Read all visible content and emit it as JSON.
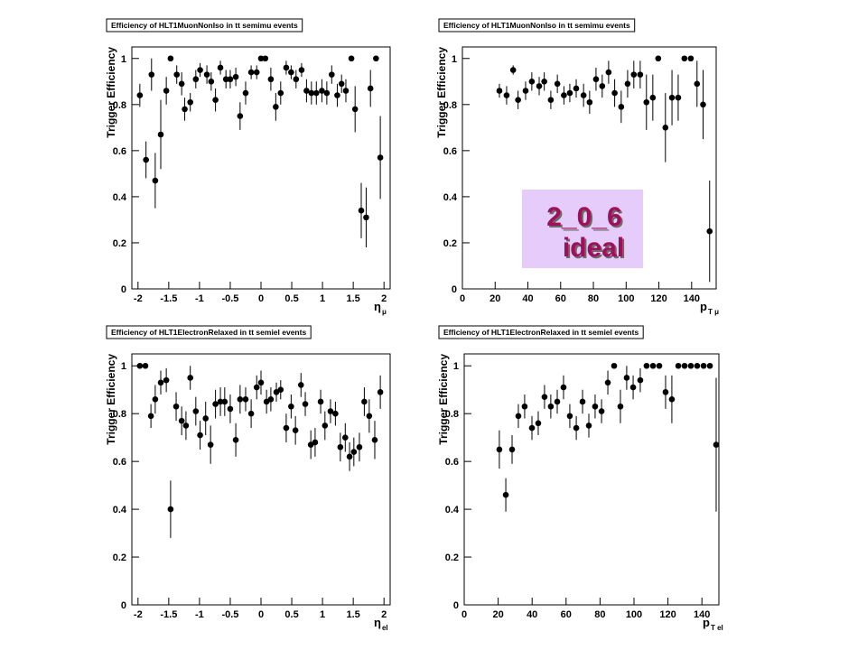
{
  "chart_data": [
    {
      "type": "scatter",
      "title": "Efficiency of HLT1MuonNonIso in tt semimu events",
      "ylabel": "Trigger Efficiency",
      "xlabel": {
        "symbol": "η",
        "subscript": "μ"
      },
      "color": "#000000",
      "xlim": [
        -2.1,
        2.1
      ],
      "ylim": [
        0,
        1.05
      ],
      "xticks": [
        -2,
        -1.5,
        -1,
        -0.5,
        0,
        0.5,
        1,
        1.5,
        2
      ],
      "yticks": [
        0,
        0.2,
        0.4,
        0.6,
        0.8,
        1
      ],
      "x": [
        -1.97,
        -1.87,
        -1.78,
        -1.72,
        -1.63,
        -1.54,
        -1.47,
        -1.37,
        -1.29,
        -1.24,
        -1.15,
        -1.06,
        -0.99,
        -0.88,
        -0.81,
        -0.74,
        -0.66,
        -0.57,
        -0.5,
        -0.41,
        -0.34,
        -0.25,
        -0.16,
        -0.07,
        0,
        0.07,
        0.16,
        0.24,
        0.32,
        0.41,
        0.49,
        0.57,
        0.66,
        0.74,
        0.82,
        0.9,
        0.99,
        1.07,
        1.15,
        1.24,
        1.31,
        1.38,
        1.47,
        1.53,
        1.63,
        1.71,
        1.78,
        1.87,
        1.94
      ],
      "values": [
        0.84,
        0.56,
        0.93,
        0.47,
        0.67,
        0.86,
        1,
        0.93,
        0.89,
        0.78,
        0.81,
        0.91,
        0.95,
        0.93,
        0.9,
        0.82,
        0.96,
        0.91,
        0.91,
        0.92,
        0.75,
        0.85,
        0.94,
        0.94,
        1,
        1,
        0.91,
        0.79,
        0.85,
        0.96,
        0.94,
        0.91,
        0.95,
        0.86,
        0.85,
        0.85,
        0.86,
        0.85,
        0.93,
        0.84,
        0.89,
        0.86,
        1,
        0.78,
        0.34,
        0.31,
        0.87,
        1,
        0.57
      ],
      "errors": [
        0.05,
        0.08,
        0.07,
        0.12,
        0.15,
        0.06,
        0,
        0.04,
        0.05,
        0.05,
        0.04,
        0.04,
        0.03,
        0.04,
        0.04,
        0.05,
        0.03,
        0.04,
        0.04,
        0.04,
        0.06,
        0.05,
        0.03,
        0.03,
        0,
        0,
        0.05,
        0.06,
        0.05,
        0.03,
        0.03,
        0.04,
        0.03,
        0.05,
        0.05,
        0.05,
        0.05,
        0.05,
        0.04,
        0.05,
        0.04,
        0.05,
        0,
        0.1,
        0.12,
        0.13,
        0.08,
        0,
        0.18
      ]
    },
    {
      "type": "scatter",
      "title": "Efficiency of HLT1MuonNonIso in tt semimu events",
      "ylabel": "Trigger Efficiency",
      "xlabel": {
        "symbol": "p",
        "subscript": "T μ"
      },
      "color": "#000000",
      "xlim": [
        0,
        155
      ],
      "ylim": [
        0,
        1.05
      ],
      "xticks": [
        0,
        20,
        40,
        60,
        80,
        100,
        120,
        140
      ],
      "yticks": [
        0,
        0.2,
        0.4,
        0.6,
        0.8,
        1
      ],
      "x": [
        22.6,
        27,
        31,
        34,
        38.6,
        42.4,
        46.9,
        50,
        54,
        58,
        62,
        65.6,
        69.5,
        74,
        77.7,
        81.6,
        85.4,
        89.3,
        93,
        97,
        100.9,
        104.7,
        108.6,
        112.4,
        116.3,
        119.6,
        124,
        128,
        131.8,
        135.6,
        139.5,
        143.3,
        147,
        151
      ],
      "values": [
        0.86,
        0.84,
        0.95,
        0.82,
        0.86,
        0.9,
        0.88,
        0.9,
        0.82,
        0.89,
        0.84,
        0.85,
        0.87,
        0.84,
        0.81,
        0.91,
        0.88,
        0.94,
        0.85,
        0.79,
        0.89,
        0.93,
        0.93,
        0.81,
        0.83,
        1,
        0.7,
        0.83,
        0.83,
        1,
        1,
        0.89,
        0.8,
        0.25
      ],
      "errors": [
        0.03,
        0.04,
        0.02,
        0.04,
        0.04,
        0.04,
        0.04,
        0.04,
        0.04,
        0.04,
        0.04,
        0.04,
        0.04,
        0.05,
        0.05,
        0.05,
        0.05,
        0.05,
        0.06,
        0.07,
        0.06,
        0.06,
        0.06,
        0.12,
        0.1,
        0,
        0.15,
        0.12,
        0.1,
        0,
        0,
        0.1,
        0.15,
        0.22
      ]
    },
    {
      "type": "scatter",
      "title": "Efficiency of HLT1ElectronRelaxed in tt semiel events",
      "ylabel": "Trigger Efficiency",
      "xlabel": {
        "symbol": "η",
        "subscript": "el"
      },
      "color": "#000000",
      "xlim": [
        -2.1,
        2.1
      ],
      "ylim": [
        0,
        1.05
      ],
      "xticks": [
        -2,
        -1.5,
        -1,
        -0.5,
        0,
        0.5,
        1,
        1.5,
        2
      ],
      "yticks": [
        0,
        0.2,
        0.4,
        0.6,
        0.8,
        1
      ],
      "x": [
        -1.97,
        -1.88,
        -1.79,
        -1.72,
        -1.63,
        -1.54,
        -1.47,
        -1.38,
        -1.29,
        -1.22,
        -1.15,
        -1.06,
        -0.99,
        -0.9,
        -0.82,
        -0.74,
        -0.66,
        -0.59,
        -0.5,
        -0.41,
        -0.34,
        -0.25,
        -0.16,
        -0.07,
        0,
        0.09,
        0.16,
        0.25,
        0.32,
        0.41,
        0.49,
        0.56,
        0.65,
        0.72,
        0.81,
        0.88,
        0.97,
        1.04,
        1.13,
        1.21,
        1.29,
        1.37,
        1.44,
        1.51,
        1.6,
        1.68,
        1.76,
        1.85,
        1.94
      ],
      "values": [
        1,
        1,
        0.79,
        0.86,
        0.93,
        0.94,
        0.4,
        0.83,
        0.77,
        0.75,
        0.95,
        0.81,
        0.71,
        0.78,
        0.67,
        0.84,
        0.85,
        0.85,
        0.82,
        0.69,
        0.86,
        0.86,
        0.8,
        0.91,
        0.93,
        0.85,
        0.86,
        0.89,
        0.9,
        0.74,
        0.83,
        0.73,
        0.92,
        0.84,
        0.67,
        0.68,
        0.85,
        0.75,
        0.81,
        0.8,
        0.66,
        0.7,
        0.62,
        0.64,
        0.66,
        0.85,
        0.79,
        0.69,
        0.89
      ],
      "errors": [
        0,
        0,
        0.05,
        0.06,
        0.05,
        0.05,
        0.12,
        0.06,
        0.06,
        0.06,
        0.05,
        0.06,
        0.06,
        0.07,
        0.08,
        0.06,
        0.06,
        0.06,
        0.06,
        0.07,
        0.06,
        0.05,
        0.06,
        0.05,
        0.05,
        0.05,
        0.05,
        0.04,
        0.04,
        0.06,
        0.05,
        0.06,
        0.05,
        0.05,
        0.06,
        0.06,
        0.05,
        0.06,
        0.05,
        0.05,
        0.06,
        0.06,
        0.06,
        0.06,
        0.06,
        0.06,
        0.07,
        0.08,
        0.07
      ]
    },
    {
      "type": "scatter",
      "title": "Efficiency of HLT1ElectronRelaxed in tt semiel events",
      "ylabel": "Trigger Efficiency",
      "xlabel": {
        "symbol": "p",
        "subscript": "T el"
      },
      "color": "#000000",
      "xlim": [
        0,
        150
      ],
      "ylim": [
        0,
        1.05
      ],
      "xticks": [
        0,
        20,
        40,
        60,
        80,
        100,
        120,
        140
      ],
      "yticks": [
        0,
        0.2,
        0.4,
        0.6,
        0.8,
        1
      ],
      "x": [
        20.7,
        24.5,
        28.2,
        31.9,
        35.6,
        39.9,
        43.6,
        47.3,
        51,
        54.8,
        58.5,
        62.2,
        66,
        69.7,
        73.4,
        77.1,
        80.9,
        84.6,
        88.3,
        92,
        95.7,
        99.5,
        103.7,
        107.4,
        111.2,
        114.9,
        118.6,
        122.3,
        126.1,
        129.8,
        133.5,
        137.2,
        141,
        144.7,
        148.4
      ],
      "values": [
        0.65,
        0.46,
        0.65,
        0.79,
        0.83,
        0.74,
        0.76,
        0.87,
        0.83,
        0.85,
        0.91,
        0.79,
        0.74,
        0.85,
        0.75,
        0.83,
        0.81,
        0.93,
        1,
        0.83,
        0.95,
        0.91,
        0.94,
        1,
        1,
        1,
        0.89,
        0.86,
        1,
        1,
        1,
        1,
        1,
        1,
        0.67
      ],
      "errors": [
        0.08,
        0.07,
        0.06,
        0.05,
        0.05,
        0.05,
        0.05,
        0.05,
        0.05,
        0.05,
        0.05,
        0.05,
        0.05,
        0.05,
        0.05,
        0.05,
        0.05,
        0.05,
        0,
        0.07,
        0.05,
        0.05,
        0.05,
        0,
        0,
        0,
        0.07,
        0.1,
        0,
        0,
        0,
        0,
        0,
        0,
        0.28
      ]
    }
  ],
  "overlay": {
    "lines": [
      "2_0_6",
      "ideal"
    ]
  }
}
